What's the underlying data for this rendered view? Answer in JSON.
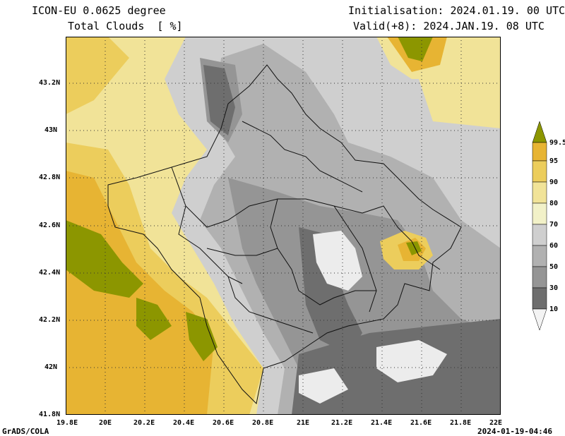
{
  "header": {
    "model_line": "ICON-EU 0.0625 degree",
    "field_line": "Total Clouds  [ %]",
    "init_line": "Initialisation: 2024.01.19. 00 UTC",
    "valid_line": "Valid(+8): 2024.JAN.19. 08 UTC"
  },
  "footer": {
    "left": "GrADS/COLA",
    "right": "2024-01-19-04:46"
  },
  "axes": {
    "lon_labels": [
      "19.8E",
      "20E",
      "20.2E",
      "20.4E",
      "20.6E",
      "20.8E",
      "21E",
      "21.2E",
      "21.4E",
      "21.6E",
      "21.8E",
      "22E"
    ],
    "lat_labels": [
      "43.2N",
      "43N",
      "42.8N",
      "42.6N",
      "42.4N",
      "42.2N",
      "42N",
      "41.8N"
    ]
  },
  "colorbar": {
    "levels": [
      "99.5",
      "95",
      "90",
      "80",
      "70",
      "60",
      "50",
      "30",
      "10"
    ],
    "colors": {
      "c99": "#8c9600",
      "c95": "#e7b433",
      "c90": "#eccd5c",
      "c80": "#f1e398",
      "c70": "#f2f1c8",
      "c60": "#cfcfcf",
      "c50": "#b1b1b1",
      "c30": "#959595",
      "c10": "#6e6e6e",
      "c0": "#535353",
      "clear": "#ececec"
    }
  },
  "colors": {
    "border": "#111111",
    "grid": "#333333"
  }
}
